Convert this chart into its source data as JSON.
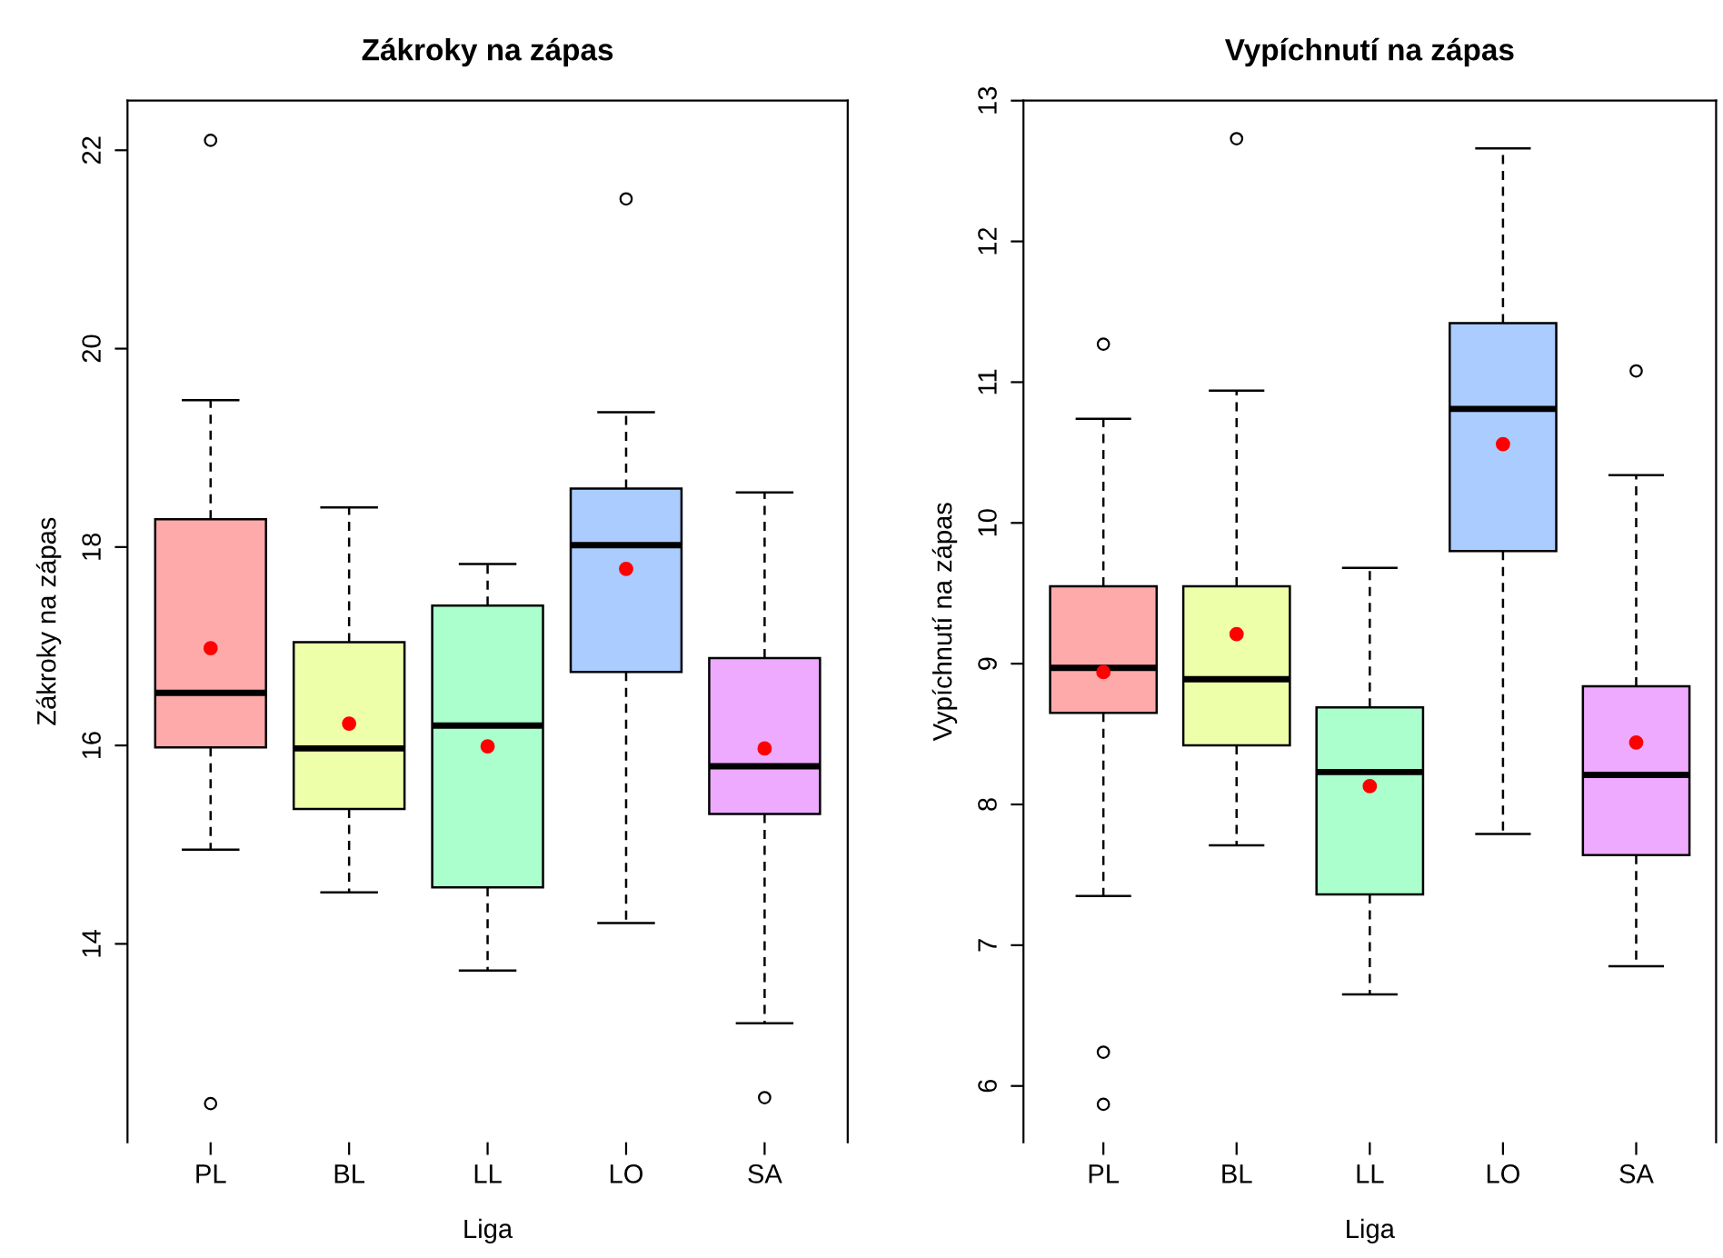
{
  "chart_data": [
    {
      "type": "box",
      "title": "Zákroky na zápas",
      "xlabel": "Liga",
      "ylabel": "Zákroky na zápas",
      "categories": [
        "PL",
        "BL",
        "LL",
        "LO",
        "SA"
      ],
      "colors": [
        "#ffaaaa",
        "#eeffaa",
        "#aaffcc",
        "#aaccff",
        "#eeaaff"
      ],
      "boxes": [
        {
          "low": 14.95,
          "q1": 15.98,
          "median": 16.53,
          "q3": 18.28,
          "high": 19.48,
          "mean": 16.98,
          "outliers": [
            22.1,
            12.39
          ]
        },
        {
          "low": 14.52,
          "q1": 15.36,
          "median": 15.97,
          "q3": 17.04,
          "high": 18.4,
          "mean": 16.22
        },
        {
          "low": 13.73,
          "q1": 14.57,
          "median": 16.2,
          "q3": 17.41,
          "high": 17.83,
          "mean": 15.99
        },
        {
          "low": 14.21,
          "q1": 16.74,
          "median": 18.02,
          "q3": 18.59,
          "high": 19.36,
          "mean": 17.78,
          "outliers": [
            21.51
          ]
        },
        {
          "low": 13.2,
          "q1": 15.31,
          "median": 15.79,
          "q3": 16.88,
          "high": 18.55,
          "mean": 15.97,
          "outliers": [
            12.45
          ]
        }
      ],
      "ylim": [
        12.0,
        22.5
      ],
      "yticks": [
        14,
        16,
        18,
        20,
        22
      ],
      "grid": false,
      "legend": false
    },
    {
      "type": "box",
      "title": "Vypíchnutí na zápas",
      "xlabel": "Liga",
      "ylabel": "Vypíchnutí na zápas",
      "categories": [
        "PL",
        "BL",
        "LL",
        "LO",
        "SA"
      ],
      "colors": [
        "#ffaaaa",
        "#eeffaa",
        "#aaffcc",
        "#aaccff",
        "#eeaaff"
      ],
      "boxes": [
        {
          "low": 7.35,
          "q1": 8.65,
          "median": 8.97,
          "q3": 9.55,
          "high": 10.74,
          "mean": 8.94,
          "outliers": [
            11.27,
            6.24,
            5.87
          ]
        },
        {
          "low": 7.71,
          "q1": 8.42,
          "median": 8.89,
          "q3": 9.55,
          "high": 10.94,
          "mean": 9.21,
          "outliers": [
            12.73
          ]
        },
        {
          "low": 6.65,
          "q1": 7.36,
          "median": 8.23,
          "q3": 8.69,
          "high": 9.68,
          "mean": 8.13
        },
        {
          "low": 7.79,
          "q1": 9.8,
          "median": 10.81,
          "q3": 11.42,
          "high": 12.66,
          "mean": 10.56
        },
        {
          "low": 6.85,
          "q1": 7.64,
          "median": 8.21,
          "q3": 8.84,
          "high": 10.34,
          "mean": 8.44,
          "outliers": [
            11.08
          ]
        }
      ],
      "ylim": [
        5.6,
        13.0
      ],
      "yticks": [
        6,
        7,
        8,
        9,
        10,
        11,
        12,
        13
      ],
      "grid": false,
      "legend": false
    }
  ]
}
